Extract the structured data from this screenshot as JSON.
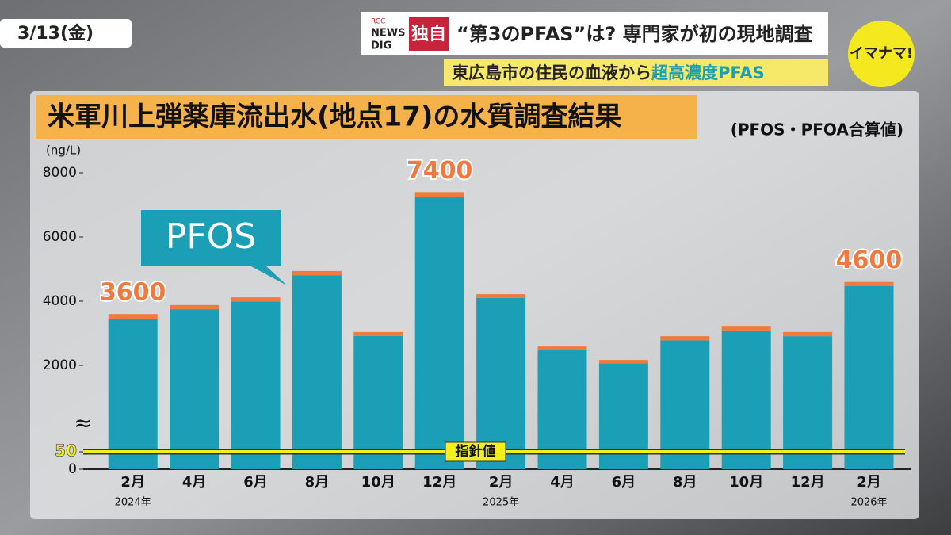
{
  "screen": {
    "date": "3/13(金)",
    "logo": [
      "RCC",
      "NEWS",
      "DIG"
    ],
    "tag": "独自",
    "headline": "“第3のPFAS”は? 専門家が初の現地調査",
    "subheadline": [
      "東広島市の住民の血液から",
      "超高濃度PFAS"
    ],
    "program": "イマナマ!"
  },
  "chart_data": {
    "type": "stacked-bar",
    "title": "米軍川上弾薬庫流出水(地点17)の水質調査結果",
    "subtitle": "(PFOS・PFOA合算値)",
    "y_label": "(ng/L)",
    "categories": [
      "2月",
      "4月",
      "6月",
      "8月",
      "10月",
      "12月",
      "2月",
      "4月",
      "6月",
      "8月",
      "10月",
      "12月",
      "2月"
    ],
    "year_labels": [
      "2024年",
      null,
      null,
      null,
      null,
      null,
      "2025年",
      null,
      null,
      null,
      null,
      null,
      "2026年"
    ],
    "series": [
      {
        "name": "PFOS",
        "color": "#1a9fb6",
        "values": [
          3450,
          3750,
          3990,
          4810,
          2920,
          7250,
          4100,
          2470,
          2060,
          2780,
          3090,
          2910,
          4470
        ]
      },
      {
        "color": "#f07a3e",
        "values": [
          150,
          130,
          130,
          130,
          120,
          150,
          120,
          120,
          110,
          130,
          140,
          130,
          130
        ]
      }
    ],
    "total_labels": [
      "3600",
      null,
      null,
      null,
      null,
      "7400",
      null,
      null,
      null,
      null,
      null,
      null,
      "4600"
    ],
    "ylim": [
      0,
      8000
    ],
    "yticks": [
      0,
      50,
      2000,
      4000,
      6000,
      8000
    ],
    "axis_break": "≈",
    "guideline": {
      "value": 50,
      "label": "指針値",
      "color": "#f2ef1c"
    }
  }
}
